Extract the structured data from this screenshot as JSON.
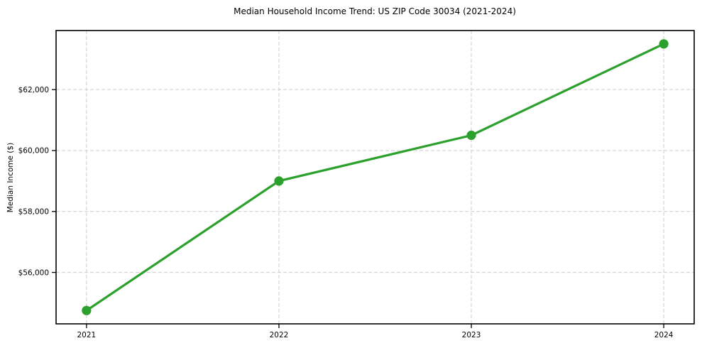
{
  "chart_data": {
    "type": "line",
    "title": "Median Household Income Trend: US ZIP Code 30034 (2021-2024)",
    "xlabel": "",
    "ylabel": "Median Income ($)",
    "categories": [
      "2021",
      "2022",
      "2023",
      "2024"
    ],
    "values": [
      54750,
      59000,
      60500,
      63500
    ],
    "yticks": [
      56000,
      58000,
      60000,
      62000
    ],
    "ytick_labels": [
      "$56,000",
      "$58,000",
      "$60,000",
      "$62,000"
    ],
    "ylim": [
      54312,
      63938
    ],
    "grid": true,
    "grid_style": "dashed",
    "legend": "none",
    "line_color": "#2ca02c",
    "marker": "circle",
    "colors": {
      "line": "#2ca02c",
      "grid": "#cccccc",
      "spine": "#000000",
      "background": "#ffffff",
      "text": "#000000"
    }
  }
}
